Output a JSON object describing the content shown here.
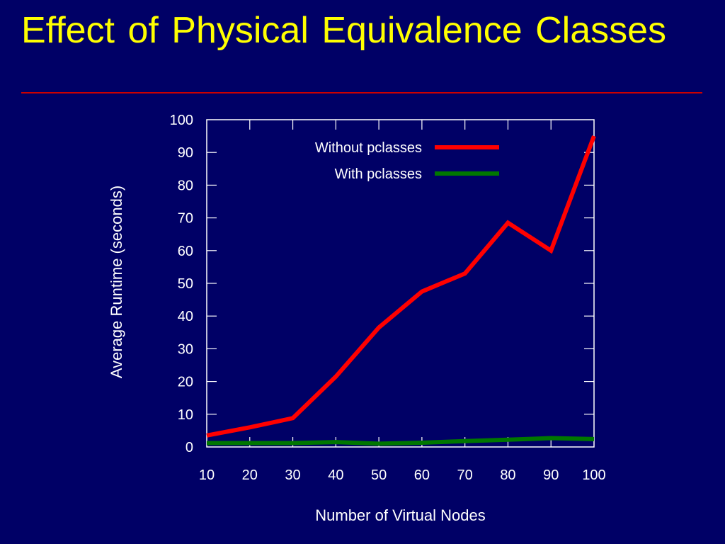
{
  "slide": {
    "title": "Effect of Physical Equivalence Classes"
  },
  "colors": {
    "background": "#000066",
    "title": "#ffff00",
    "rule": "#cc0000",
    "axes": "#ffffff"
  },
  "chart_data": {
    "type": "line",
    "title": "",
    "xlabel": "Number of Virtual Nodes",
    "ylabel": "Average Runtime (seconds)",
    "x": [
      10,
      20,
      30,
      40,
      50,
      60,
      70,
      80,
      90,
      100
    ],
    "xlim": [
      10,
      100
    ],
    "ylim": [
      0,
      100
    ],
    "xticks": [
      10,
      20,
      30,
      40,
      50,
      60,
      70,
      80,
      90,
      100
    ],
    "yticks": [
      0,
      10,
      20,
      30,
      40,
      50,
      60,
      70,
      80,
      90,
      100
    ],
    "grid": false,
    "legend_position": "top-center",
    "series": [
      {
        "name": "Without pclasses",
        "color": "#ff0000",
        "values": [
          3.5,
          6,
          8.8,
          21.5,
          36.5,
          47.5,
          53,
          68.5,
          60,
          95
        ]
      },
      {
        "name": "With pclasses",
        "color": "#007700",
        "values": [
          1.2,
          1.2,
          1.2,
          1.5,
          1.0,
          1.3,
          1.8,
          2.2,
          2.7,
          2.4
        ]
      }
    ]
  }
}
